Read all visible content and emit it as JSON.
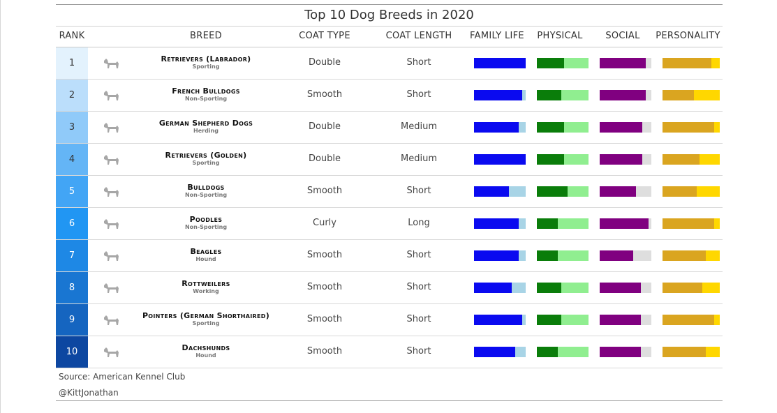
{
  "chart_data": {
    "type": "table",
    "title": "Top 10 Dog Breeds in 2020",
    "columns": [
      "RANK",
      "BREED",
      "COAT TYPE",
      "COAT LENGTH",
      "FAMILY LIFE",
      "PHYSICAL",
      "SOCIAL",
      "PERSONALITY"
    ],
    "colors": {
      "family_fill": "#0a0af0",
      "family_rest": "#a8d4e6",
      "physical_fill": "#0a7d0a",
      "physical_rest": "#90ee90",
      "social_fill": "#800080",
      "social_rest": "#dedede",
      "personality_fill": "#daa520",
      "personality_rest": "#ffd700"
    },
    "rank_colors": [
      "#e3f2fd",
      "#bbdefb",
      "#90caf9",
      "#64b5f6",
      "#42a5f5",
      "#2196f3",
      "#1e88e5",
      "#1976d2",
      "#1565c0",
      "#0d47a1"
    ],
    "rows": [
      {
        "rank": "1",
        "breed": "Retrievers (Labrador)",
        "group": "Sporting",
        "coat_type": "Double",
        "coat_length": "Short",
        "family": 1.0,
        "physical": 0.53,
        "social": 0.89,
        "personality": 0.85
      },
      {
        "rank": "2",
        "breed": "French Bulldogs",
        "group": "Non-Sporting",
        "coat_type": "Smooth",
        "coat_length": "Short",
        "family": 0.93,
        "physical": 0.47,
        "social": 0.89,
        "personality": 0.55
      },
      {
        "rank": "3",
        "breed": "German Shepherd Dogs",
        "group": "Herding",
        "coat_type": "Double",
        "coat_length": "Medium",
        "family": 0.87,
        "physical": 0.53,
        "social": 0.83,
        "personality": 0.9
      },
      {
        "rank": "4",
        "breed": "Retrievers (Golden)",
        "group": "Sporting",
        "coat_type": "Double",
        "coat_length": "Medium",
        "family": 1.0,
        "physical": 0.53,
        "social": 0.83,
        "personality": 0.65
      },
      {
        "rank": "5",
        "breed": "Bulldogs",
        "group": "Non-Sporting",
        "coat_type": "Smooth",
        "coat_length": "Short",
        "family": 0.67,
        "physical": 0.6,
        "social": 0.7,
        "personality": 0.6
      },
      {
        "rank": "6",
        "breed": "Poodles",
        "group": "Non-Sporting",
        "coat_type": "Curly",
        "coat_length": "Long",
        "family": 0.87,
        "physical": 0.4,
        "social": 0.95,
        "personality": 0.9
      },
      {
        "rank": "7",
        "breed": "Beagles",
        "group": "Hound",
        "coat_type": "Smooth",
        "coat_length": "Short",
        "family": 0.87,
        "physical": 0.4,
        "social": 0.65,
        "personality": 0.75
      },
      {
        "rank": "8",
        "breed": "Rottweilers",
        "group": "Working",
        "coat_type": "Smooth",
        "coat_length": "Short",
        "family": 0.73,
        "physical": 0.47,
        "social": 0.8,
        "personality": 0.7
      },
      {
        "rank": "9",
        "breed": "Pointers (German Shorthaired)",
        "group": "Sporting",
        "coat_type": "Smooth",
        "coat_length": "Short",
        "family": 0.93,
        "physical": 0.47,
        "social": 0.8,
        "personality": 0.9
      },
      {
        "rank": "10",
        "breed": "Dachshunds",
        "group": "Hound",
        "coat_type": "Smooth",
        "coat_length": "Short",
        "family": 0.8,
        "physical": 0.4,
        "social": 0.8,
        "personality": 0.75
      }
    ]
  },
  "footer": {
    "source": "Source: American Kennel Club",
    "handle": "@KittJonathan"
  }
}
